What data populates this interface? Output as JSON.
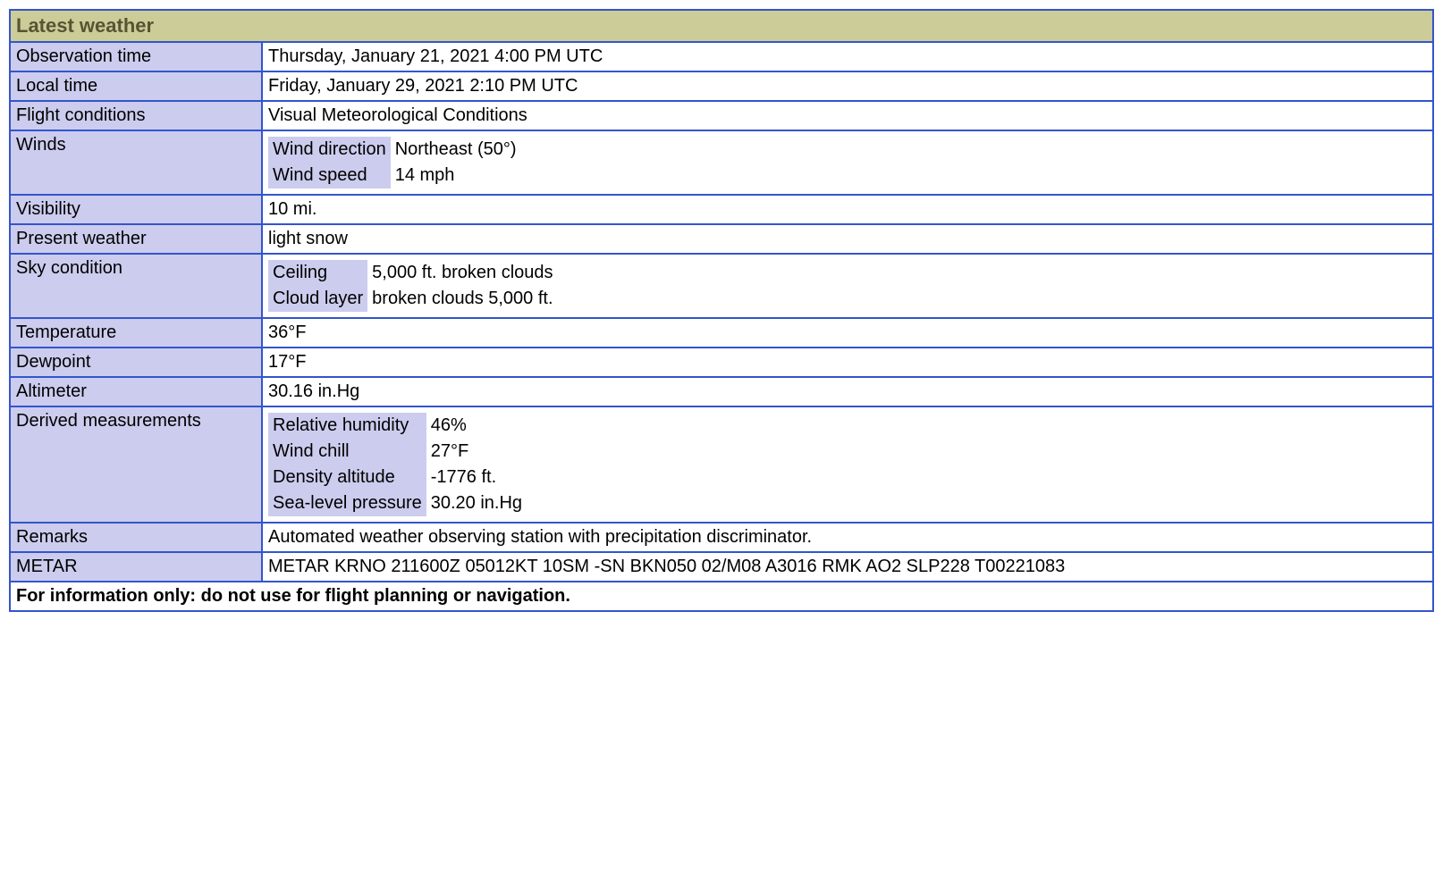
{
  "header": "Latest weather",
  "rows": {
    "observation_time": {
      "label": "Observation time",
      "value": "Thursday, January 21, 2021 4:00 PM UTC"
    },
    "local_time": {
      "label": "Local time",
      "value": "Friday, January 29, 2021 2:10 PM UTC"
    },
    "flight_conditions": {
      "label": "Flight conditions",
      "value": "Visual Meteorological Conditions"
    },
    "winds": {
      "label": "Winds",
      "direction_label": "Wind direction",
      "direction_value": "Northeast (50°)",
      "speed_label": "Wind speed",
      "speed_value": "14 mph"
    },
    "visibility": {
      "label": "Visibility",
      "value": "10 mi."
    },
    "present_weather": {
      "label": "Present weather",
      "value": "light snow"
    },
    "sky_condition": {
      "label": "Sky condition",
      "ceiling_label": "Ceiling",
      "ceiling_value": "5,000 ft. broken clouds",
      "cloud_layer_label": "Cloud layer",
      "cloud_layer_value": "broken clouds 5,000 ft."
    },
    "temperature": {
      "label": "Temperature",
      "value": "36°F"
    },
    "dewpoint": {
      "label": "Dewpoint",
      "value": "17°F"
    },
    "altimeter": {
      "label": "Altimeter",
      "value": "30.16 in.Hg"
    },
    "derived": {
      "label": "Derived measurements",
      "rh_label": "Relative humidity",
      "rh_value": "46%",
      "wc_label": "Wind chill",
      "wc_value": "27°F",
      "da_label": "Density altitude",
      "da_value": "-1776 ft.",
      "slp_label": "Sea-level pressure",
      "slp_value": "30.20 in.Hg"
    },
    "remarks": {
      "label": "Remarks",
      "value": "Automated weather observing station with precipitation discriminator."
    },
    "metar": {
      "label": "METAR",
      "value": "METAR KRNO 211600Z 05012KT 10SM -SN BKN050 02/M08 A3016 RMK AO2 SLP228 T00221083"
    }
  },
  "footer": "For information only: do not use for flight planning or navigation.",
  "colors": {
    "border": "#3355cc",
    "header_bg": "#cccc99",
    "header_fg": "#555533",
    "label_bg": "#ccccee",
    "vmc_bg": "#88ee66",
    "orange_bg": "#ff9922",
    "white": "#ffffff"
  }
}
